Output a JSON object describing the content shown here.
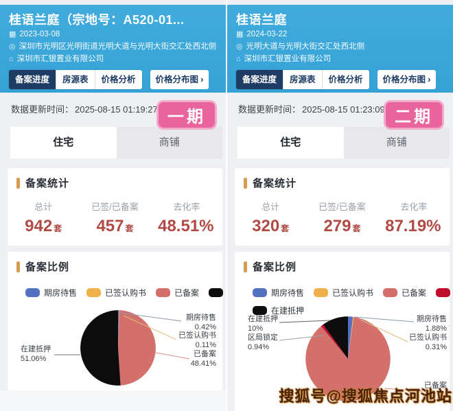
{
  "ui": {
    "chevron": "›"
  },
  "watermark": "搜狐号@搜狐焦点河池站",
  "colors": {
    "blue": "#5470c0",
    "orange": "#f0b04c",
    "salmon": "#d4706c",
    "crimson": "#c00d2b",
    "black": "#0d0d0d",
    "header_blue": "#38a5d8",
    "navy": "#1e3c64",
    "badge_pink": "#e9639d",
    "stat_red": "#b14a44",
    "section_bar": "#d79a4f"
  },
  "panels": [
    {
      "title": "桂语兰庭（宗地号：A520-01...",
      "date": "2023-03-08",
      "address": "深圳市光明区光明街道光明大道与光明大街交汇处西北侧",
      "company": "深圳市汇银置业有限公司",
      "nav_tabs": {
        "t0": "备案进度",
        "t1": "房源表",
        "t2": "价格分析"
      },
      "dist_button": "价格分布图",
      "update_label": "数据更新时间：",
      "update_time": "2025-08-15 01:19:27",
      "phase_badge": "一期",
      "type_tabs": {
        "home": "住宅",
        "shop": "商铺"
      },
      "stats_title": "备案统计",
      "stats": [
        {
          "label": "总计",
          "value": "942",
          "unit": "套"
        },
        {
          "label": "已签/已备案",
          "value": "457",
          "unit": "套"
        },
        {
          "label": "去化率",
          "value": "48.51%",
          "unit": ""
        }
      ],
      "ratio_title": "备案比例",
      "legend": [
        {
          "label": "期房待售",
          "color": "blue"
        },
        {
          "label": "已签认购书",
          "color": "orange"
        },
        {
          "label": "已备案",
          "color": "salmon"
        },
        {
          "label": "在建抵押",
          "color": "black"
        }
      ],
      "pie_labels": {
        "qifang": {
          "name": "期房待售",
          "pct": "0.42%"
        },
        "yiqian": {
          "name": "已签认购书",
          "pct": "0.11%"
        },
        "beian": {
          "name": "已备案",
          "pct": "48.41%"
        },
        "zaijian": {
          "name": "在建抵押",
          "pct": "51.06%"
        }
      }
    },
    {
      "title": "桂语兰庭",
      "date": "2024-03-22",
      "address": "光明大道与光明大街交汇处西北侧",
      "company": "深圳市汇银置业有限公司",
      "nav_tabs": {
        "t0": "备案进度",
        "t1": "房源表",
        "t2": "价格分析"
      },
      "dist_button": "价格分布图",
      "update_label": "数据更新时间：",
      "update_time": "2025-08-15 01:23:09",
      "phase_badge": "二期",
      "type_tabs": {
        "home": "住宅",
        "shop": "商铺"
      },
      "stats_title": "备案统计",
      "stats": [
        {
          "label": "总计",
          "value": "320",
          "unit": "套"
        },
        {
          "label": "已签/已备案",
          "value": "279",
          "unit": "套"
        },
        {
          "label": "去化率",
          "value": "87.19%",
          "unit": ""
        }
      ],
      "ratio_title": "备案比例",
      "legend": [
        {
          "label": "期房待售",
          "color": "blue"
        },
        {
          "label": "已签认购书",
          "color": "orange"
        },
        {
          "label": "已备案",
          "color": "salmon"
        },
        {
          "label": "区局锁定",
          "color": "crimson"
        },
        {
          "label": "在建抵押",
          "color": "black"
        }
      ],
      "pie_labels": {
        "zaijian": {
          "name": "在建抵押",
          "pct": "10%"
        },
        "qvju": {
          "name": "区局锁定",
          "pct": "0.94%"
        },
        "qifang": {
          "name": "期房待售",
          "pct": "1.88%"
        },
        "yiqian": {
          "name": "已签认购书",
          "pct": "0.31%"
        },
        "beian": {
          "name": "已备案",
          "pct": ""
        }
      }
    }
  ],
  "chart_data": [
    {
      "type": "pie",
      "title": "备案比例 一期 住宅",
      "legend_position": "top",
      "slices": [
        {
          "name": "期房待售",
          "value": 0.42,
          "color": "blue"
        },
        {
          "name": "已签认购书",
          "value": 0.11,
          "color": "orange"
        },
        {
          "name": "已备案",
          "value": 48.41,
          "color": "salmon"
        },
        {
          "name": "在建抵押",
          "value": 51.06,
          "color": "black"
        }
      ]
    },
    {
      "type": "pie",
      "title": "备案比例 二期 住宅",
      "legend_position": "top",
      "slices": [
        {
          "name": "期房待售",
          "value": 1.88,
          "color": "blue"
        },
        {
          "name": "已签认购书",
          "value": 0.31,
          "color": "orange"
        },
        {
          "name": "已备案",
          "value": 86.87,
          "color": "salmon"
        },
        {
          "name": "区局锁定",
          "value": 0.94,
          "color": "crimson"
        },
        {
          "name": "在建抵押",
          "value": 10,
          "color": "black"
        }
      ]
    }
  ]
}
